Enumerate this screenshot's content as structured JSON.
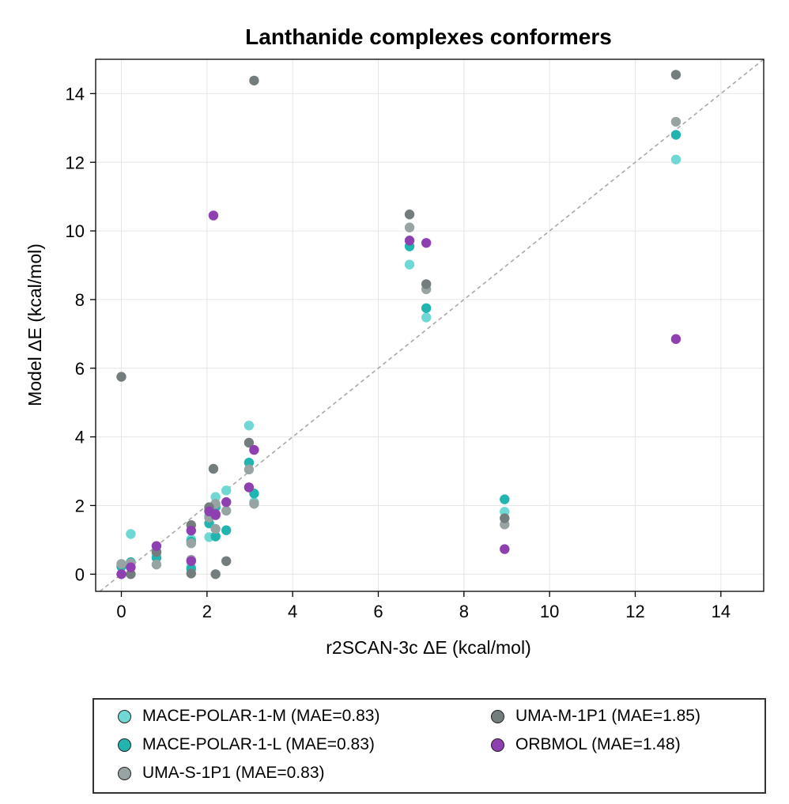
{
  "chart_data": {
    "type": "scatter",
    "title": "Lanthanide complexes conformers",
    "xlabel": "r2SCAN-3c ΔE (kcal/mol)",
    "ylabel": "Model ΔE (kcal/mol)",
    "xlim": [
      -0.6,
      15
    ],
    "ylim": [
      -0.5,
      15
    ],
    "xticks": [
      "0",
      "2",
      "4",
      "6",
      "8",
      "10",
      "12",
      "14"
    ],
    "yticks": [
      "0",
      "2",
      "4",
      "6",
      "8",
      "10",
      "12",
      "14"
    ],
    "xtick_values": [
      0,
      2,
      4,
      6,
      8,
      10,
      12,
      14
    ],
    "ytick_values": [
      0,
      2,
      4,
      6,
      8,
      10,
      12,
      14
    ],
    "grid": true,
    "reference_line": "y = x (dashed)",
    "legend_position": "below",
    "series": [
      {
        "name": "MACE-POLAR-1-M (MAE=0.83)",
        "color": "#6fd8d4",
        "points": [
          [
            0,
            0.25
          ],
          [
            0.22,
            1.17
          ],
          [
            0.82,
            0.6
          ],
          [
            1.63,
            1.02
          ],
          [
            1.63,
            0.2
          ],
          [
            2.05,
            1.08
          ],
          [
            2.05,
            1.7
          ],
          [
            2.2,
            2.25
          ],
          [
            2.2,
            1.1
          ],
          [
            2.45,
            2.44
          ],
          [
            2.98,
            4.33
          ],
          [
            3.1,
            2.1
          ],
          [
            6.73,
            9.02
          ],
          [
            7.12,
            7.48
          ],
          [
            8.95,
            1.82
          ],
          [
            12.95,
            12.08
          ]
        ]
      },
      {
        "name": "MACE-POLAR-1-L (MAE=0.83)",
        "color": "#22b5b0",
        "points": [
          [
            0,
            0.22
          ],
          [
            0.22,
            0.35
          ],
          [
            0.82,
            0.48
          ],
          [
            1.63,
            0.95
          ],
          [
            1.63,
            0.15
          ],
          [
            2.05,
            1.48
          ],
          [
            2.05,
            1.85
          ],
          [
            2.2,
            1.1
          ],
          [
            2.2,
            1.95
          ],
          [
            2.45,
            1.28
          ],
          [
            2.98,
            3.25
          ],
          [
            3.1,
            2.35
          ],
          [
            6.73,
            9.55
          ],
          [
            7.12,
            7.75
          ],
          [
            8.95,
            2.18
          ],
          [
            12.95,
            12.8
          ]
        ]
      },
      {
        "name": "UMA-S-1P1 (MAE=0.83)",
        "color": "#98a3a3",
        "points": [
          [
            0,
            0.3
          ],
          [
            0.22,
            0.32
          ],
          [
            0.82,
            0.28
          ],
          [
            1.63,
            0.9
          ],
          [
            1.63,
            0.42
          ],
          [
            2.05,
            1.65
          ],
          [
            2.05,
            1.9
          ],
          [
            2.2,
            1.32
          ],
          [
            2.2,
            2.05
          ],
          [
            2.45,
            1.85
          ],
          [
            2.98,
            3.05
          ],
          [
            3.1,
            2.05
          ],
          [
            6.73,
            10.1
          ],
          [
            7.12,
            8.3
          ],
          [
            8.95,
            1.45
          ],
          [
            12.95,
            13.18
          ]
        ]
      },
      {
        "name": "UMA-M-1P1 (MAE=1.85)",
        "color": "#747d7e",
        "points": [
          [
            0,
            5.75
          ],
          [
            0.22,
            0.0
          ],
          [
            0.82,
            0.65
          ],
          [
            1.63,
            1.43
          ],
          [
            1.63,
            0.02
          ],
          [
            2.05,
            1.95
          ],
          [
            2.15,
            3.07
          ],
          [
            2.2,
            0.0
          ],
          [
            2.45,
            0.38
          ],
          [
            2.98,
            3.83
          ],
          [
            3.1,
            14.38
          ],
          [
            6.73,
            10.48
          ],
          [
            7.12,
            8.45
          ],
          [
            8.95,
            1.63
          ],
          [
            12.95,
            14.55
          ]
        ]
      },
      {
        "name": "ORBMOL (MAE=1.48)",
        "color": "#8e3fb0",
        "points": [
          [
            0,
            0.0
          ],
          [
            0.22,
            0.2
          ],
          [
            0.82,
            0.82
          ],
          [
            1.63,
            1.27
          ],
          [
            1.63,
            0.38
          ],
          [
            2.05,
            1.83
          ],
          [
            2.15,
            10.45
          ],
          [
            2.2,
            1.75
          ],
          [
            2.2,
            1.72
          ],
          [
            2.45,
            2.1
          ],
          [
            2.98,
            2.53
          ],
          [
            3.1,
            3.62
          ],
          [
            6.73,
            9.72
          ],
          [
            7.12,
            9.65
          ],
          [
            8.95,
            0.73
          ],
          [
            12.95,
            6.85
          ]
        ]
      }
    ]
  },
  "legend": {
    "items": [
      {
        "label": "MACE-POLAR-1-M (MAE=0.83)",
        "color": "#6fd8d4"
      },
      {
        "label": "MACE-POLAR-1-L (MAE=0.83)",
        "color": "#22b5b0"
      },
      {
        "label": "UMA-S-1P1 (MAE=0.83)",
        "color": "#98a3a3"
      },
      {
        "label": "UMA-M-1P1 (MAE=1.85)",
        "color": "#747d7e"
      },
      {
        "label": "ORBMOL (MAE=1.48)",
        "color": "#8e3fb0"
      }
    ]
  }
}
